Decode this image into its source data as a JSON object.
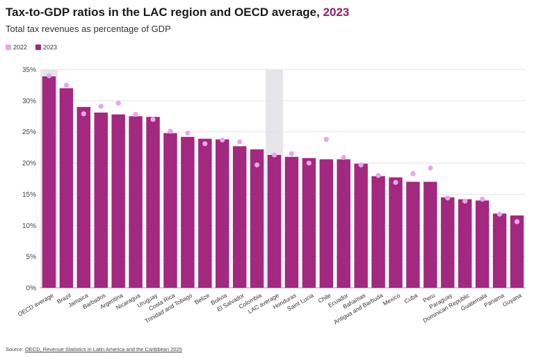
{
  "title_main": "Tax-to-GDP ratios in the LAC region and OECD average, ",
  "title_year": "2023",
  "subtitle": "Total tax revenues as percentage of GDP",
  "colors": {
    "y2022": "#e7a6e6",
    "y2023": "#a3287f",
    "highlight": "#e6e6ea",
    "grid": "#e2e2e2",
    "axis": "#999999"
  },
  "source_prefix": "Source: ",
  "source_link": "OECD, Revenue Statistics in Latin America and the Caribbean 2025",
  "chart_data": {
    "type": "bar",
    "title": "Tax-to-GDP ratios in the LAC region and OECD average, 2023",
    "subtitle": "Total tax revenues as percentage of GDP",
    "ylim": [
      0,
      35
    ],
    "yticks": [
      "0%",
      "5%",
      "10%",
      "15%",
      "20%",
      "25%",
      "30%",
      "35%"
    ],
    "grid": true,
    "legend_position": "top-left",
    "highlighted": [
      "OECD average",
      "LAC average"
    ],
    "categories": [
      "OECD average",
      "Brazil",
      "Jamaica",
      "Barbados",
      "Argentina",
      "Nicaragua",
      "Uruguay",
      "Costa Rica",
      "Trinidad and Tobago",
      "Belize",
      "Bolivia",
      "El Salvador",
      "Colombia",
      "LAC average",
      "Honduras",
      "Saint Lucia",
      "Chile",
      "Ecuador",
      "Bahamas",
      "Antigua and Barbuda",
      "Mexico",
      "Cuba",
      "Peru",
      "Paraguay",
      "Dominican Republic",
      "Guatemala",
      "Panama",
      "Guyana"
    ],
    "series": [
      {
        "name": "2022",
        "kind": "dot",
        "values": [
          34.0,
          32.5,
          27.9,
          29.1,
          29.6,
          27.8,
          27.0,
          25.1,
          24.8,
          23.1,
          23.7,
          23.4,
          19.7,
          21.3,
          21.5,
          20.0,
          23.8,
          20.9,
          19.7,
          18.0,
          16.9,
          18.3,
          19.2,
          14.4,
          13.9,
          14.2,
          11.8,
          10.6
        ]
      },
      {
        "name": "2023",
        "kind": "bar",
        "values": [
          33.9,
          32.0,
          29.0,
          28.1,
          27.8,
          27.5,
          27.4,
          24.8,
          24.2,
          23.9,
          23.8,
          22.7,
          22.2,
          21.3,
          21.0,
          20.8,
          20.6,
          20.6,
          19.9,
          17.9,
          17.7,
          17.0,
          17.0,
          14.5,
          14.2,
          14.0,
          11.9,
          11.6
        ]
      }
    ]
  }
}
